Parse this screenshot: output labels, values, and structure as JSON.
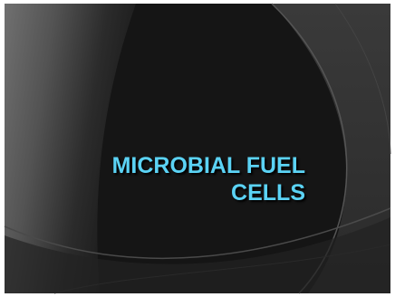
{
  "slide": {
    "title_lines": [
      "MICROBIAL FUEL",
      "CELLS"
    ]
  },
  "colors": {
    "background_dark": "#151515",
    "background_mid": "#333333",
    "title": "#5bd3f5"
  }
}
